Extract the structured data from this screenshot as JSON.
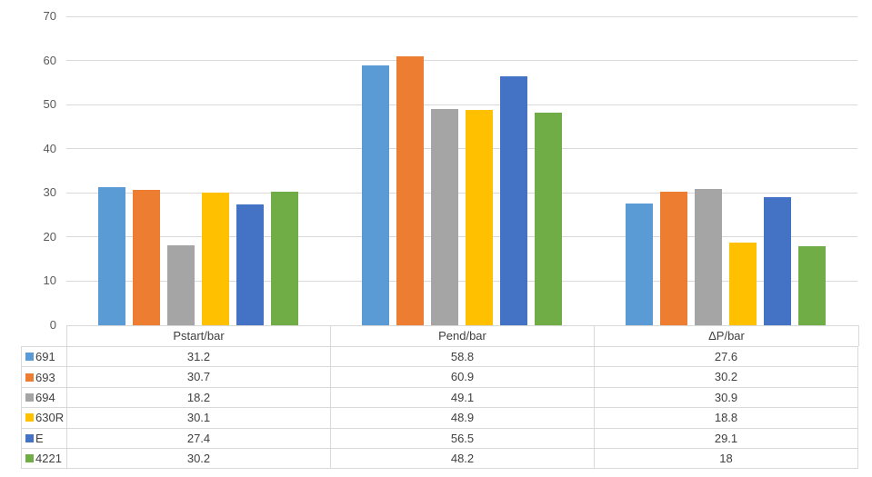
{
  "chart_data": {
    "type": "bar",
    "categories": [
      "Pstart/bar",
      "Pend/bar",
      "ΔP/bar"
    ],
    "series": [
      {
        "name": "691",
        "color": "#5B9BD5",
        "values": [
          31.2,
          58.8,
          27.6
        ]
      },
      {
        "name": "693",
        "color": "#ED7D31",
        "values": [
          30.7,
          60.9,
          30.2
        ]
      },
      {
        "name": "694",
        "color": "#A5A5A5",
        "values": [
          18.2,
          49.1,
          30.9
        ]
      },
      {
        "name": "630R",
        "color": "#FFC000",
        "values": [
          30.1,
          48.9,
          18.8
        ]
      },
      {
        "name": "E",
        "color": "#4472C4",
        "values": [
          27.4,
          56.5,
          29.1
        ]
      },
      {
        "name": "4221",
        "color": "#70AD47",
        "values": [
          30.2,
          48.2,
          18
        ]
      }
    ],
    "ylim": [
      0,
      70
    ],
    "yticks": [
      0,
      10,
      20,
      30,
      40,
      50,
      60,
      70
    ],
    "grid": true,
    "legend_position": "data-table-left-column",
    "xlabel": "",
    "ylabel": ""
  },
  "colors": {
    "background": "#FFFFFF",
    "gridline": "#D9D9D9",
    "table_border": "#D9D9D9",
    "axis_label_text": "#595959",
    "table_text": "#404040"
  }
}
